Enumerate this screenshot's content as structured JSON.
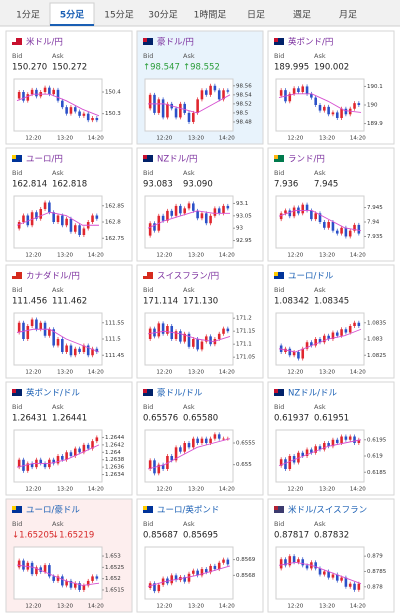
{
  "tabs": [
    "1分足",
    "5分足",
    "15分足",
    "30分足",
    "1時間足",
    "日足",
    "週足",
    "月足"
  ],
  "active_tab": 1,
  "bid_label": "Bid",
  "ask_label": "Ask",
  "xtick_labels": [
    "12:20",
    "13:20",
    "14:20"
  ],
  "up_color": "#e0262e",
  "down_color": "#2b50c8",
  "ma_color": "#d64fd0",
  "panels": [
    {
      "name": "米ドル/円",
      "name_color": "#7b2f9e",
      "background": "#ffffff",
      "quote_color": "#222222",
      "bid": "150.270",
      "ask": "150.272",
      "chart": {
        "ylim": [
          150.22,
          150.46
        ],
        "yticks": [
          150.4,
          150.3
        ],
        "values": [
          150.37,
          150.4,
          150.36,
          150.39,
          150.41,
          150.38,
          150.4,
          150.42,
          150.39,
          150.41,
          150.36,
          150.33,
          150.3,
          150.33,
          150.31,
          150.29,
          150.3,
          150.27,
          150.28,
          150.27
        ],
        "ma": [
          150.36,
          150.39,
          150.39,
          150.36,
          150.32,
          150.29
        ]
      }
    },
    {
      "name": "豪ドル/円",
      "name_color": "#7b2f9e",
      "background": "#e8f3fc",
      "quote_color": "#2a9d3a",
      "bid": "↑98.547",
      "ask": "↑98.552",
      "chart": {
        "ylim": [
          98.46,
          98.575
        ],
        "yticks": [
          98.56,
          98.54,
          98.52,
          98.5,
          98.48
        ],
        "values": [
          98.51,
          98.54,
          98.5,
          98.53,
          98.49,
          98.52,
          98.51,
          98.49,
          98.52,
          98.5,
          98.48,
          98.5,
          98.53,
          98.55,
          98.54,
          98.56,
          98.55,
          98.53,
          98.55,
          98.547
        ],
        "ma": [
          98.52,
          98.52,
          98.51,
          98.5,
          98.52,
          98.54
        ]
      }
    },
    {
      "name": "英ポンド/円",
      "name_color": "#7b2f9e",
      "background": "#ffffff",
      "quote_color": "#222222",
      "bid": "189.995",
      "ask": "190.002",
      "chart": {
        "ylim": [
          189.86,
          190.14
        ],
        "yticks": [
          190.1,
          190,
          189.9
        ],
        "values": [
          190.05,
          190.08,
          190.02,
          190.06,
          190.09,
          190.07,
          190.1,
          190.06,
          190.04,
          190,
          189.97,
          189.99,
          189.95,
          189.96,
          189.93,
          189.98,
          189.95,
          189.98,
          190.01,
          190
        ],
        "ma": [
          190.04,
          190.06,
          190.06,
          190.02,
          189.97,
          189.96
        ]
      }
    },
    {
      "name": "ユーロ/円",
      "name_color": "#7b2f9e",
      "background": "#ffffff",
      "quote_color": "#222222",
      "bid": "162.814",
      "ask": "162.818",
      "chart": {
        "ylim": [
          162.72,
          162.88
        ],
        "yticks": [
          162.85,
          162.8,
          162.75
        ],
        "values": [
          162.78,
          162.8,
          162.82,
          162.79,
          162.83,
          162.81,
          162.84,
          162.86,
          162.83,
          162.8,
          162.82,
          162.79,
          162.81,
          162.77,
          162.79,
          162.76,
          162.78,
          162.8,
          162.82,
          162.81
        ],
        "ma": [
          162.79,
          162.81,
          162.83,
          162.82,
          162.79,
          162.79
        ]
      }
    },
    {
      "name": "NZドル/円",
      "name_color": "#7b2f9e",
      "background": "#ffffff",
      "quote_color": "#222222",
      "bid": "93.083",
      "ask": "93.090",
      "chart": {
        "ylim": [
          92.92,
          93.13
        ],
        "yticks": [
          93.1,
          93.05,
          93,
          92.95
        ],
        "values": [
          92.97,
          93.02,
          92.99,
          93.05,
          93.03,
          93.07,
          93.05,
          93.09,
          93.06,
          93.08,
          93.1,
          93.07,
          93.04,
          93.06,
          93.02,
          93.05,
          93.08,
          93.06,
          93.09,
          93.08
        ],
        "ma": [
          93,
          93.03,
          93.05,
          93.07,
          93.06,
          93.06
        ]
      }
    },
    {
      "name": "ランド/円",
      "name_color": "#7b2f9e",
      "background": "#ffffff",
      "quote_color": "#222222",
      "bid": "7.936",
      "ask": "7.945",
      "chart": {
        "ylim": [
          7.931,
          7.949
        ],
        "yticks": [
          7.945,
          7.94,
          7.935
        ],
        "values": [
          7.941,
          7.943,
          7.944,
          7.942,
          7.945,
          7.943,
          7.946,
          7.944,
          7.941,
          7.943,
          7.94,
          7.938,
          7.94,
          7.937,
          7.936,
          7.938,
          7.935,
          7.937,
          7.939,
          7.936
        ],
        "ma": [
          7.942,
          7.944,
          7.944,
          7.941,
          7.938,
          7.937
        ]
      }
    },
    {
      "name": "カナダドル/円",
      "name_color": "#7b2f9e",
      "background": "#ffffff",
      "quote_color": "#222222",
      "bid": "111.456",
      "ask": "111.462",
      "chart": {
        "ylim": [
          111.42,
          111.58
        ],
        "yticks": [
          111.55,
          111.5,
          111.45
        ],
        "values": [
          111.52,
          111.55,
          111.5,
          111.54,
          111.56,
          111.53,
          111.55,
          111.51,
          111.53,
          111.48,
          111.5,
          111.46,
          111.48,
          111.45,
          111.47,
          111.46,
          111.48,
          111.45,
          111.47,
          111.46
        ],
        "ma": [
          111.52,
          111.53,
          111.53,
          111.5,
          111.48,
          111.46
        ]
      }
    },
    {
      "name": "スイスフラン/円",
      "name_color": "#7b2f9e",
      "background": "#ffffff",
      "quote_color": "#222222",
      "bid": "171.114",
      "ask": "171.130",
      "chart": {
        "ylim": [
          171.02,
          171.22
        ],
        "yticks": [
          171.2,
          171.15,
          171.1,
          171.05
        ],
        "values": [
          171.12,
          171.16,
          171.13,
          171.18,
          171.14,
          171.17,
          171.12,
          171.15,
          171.11,
          171.14,
          171.09,
          171.12,
          171.08,
          171.11,
          171.13,
          171.1,
          171.12,
          171.14,
          171.16,
          171.15
        ],
        "ma": [
          171.14,
          171.15,
          171.14,
          171.12,
          171.11,
          171.13
        ]
      }
    },
    {
      "name": "ユーロ/ドル",
      "name_color": "#1a5fb4",
      "background": "#ffffff",
      "quote_color": "#222222",
      "bid": "1.08342",
      "ask": "1.08345",
      "chart": {
        "ylim": [
          1.0822,
          1.0838
        ],
        "yticks": [
          1.0835,
          1.083,
          1.0825
        ],
        "values": [
          1.0828,
          1.0826,
          1.0827,
          1.0825,
          1.0826,
          1.0824,
          1.0827,
          1.0829,
          1.0828,
          1.083,
          1.0829,
          1.0831,
          1.083,
          1.0832,
          1.0831,
          1.0833,
          1.0832,
          1.0834,
          1.0835,
          1.0834
        ],
        "ma": [
          1.0827,
          1.0826,
          1.0828,
          1.083,
          1.0831,
          1.0833
        ]
      }
    },
    {
      "name": "英ポンド/ドル",
      "name_color": "#1a5fb4",
      "background": "#ffffff",
      "quote_color": "#222222",
      "bid": "1.26431",
      "ask": "1.26441",
      "chart": {
        "ylim": [
          1.2632,
          1.2646
        ],
        "yticks": [
          1.2644,
          1.2642,
          1.264,
          1.2638,
          1.2636,
          1.2634
        ],
        "values": [
          1.2636,
          1.2638,
          1.2635,
          1.2637,
          1.2636,
          1.2638,
          1.2637,
          1.2636,
          1.2638,
          1.2637,
          1.2639,
          1.2638,
          1.264,
          1.2639,
          1.2641,
          1.264,
          1.2642,
          1.2641,
          1.2643,
          1.2644
        ],
        "ma": [
          1.2636,
          1.2637,
          1.2637,
          1.2638,
          1.264,
          1.2642
        ]
      }
    },
    {
      "name": "豪ドル/ドル",
      "name_color": "#1a5fb4",
      "background": "#ffffff",
      "quote_color": "#222222",
      "bid": "0.65576",
      "ask": "0.65580",
      "chart": {
        "ylim": [
          0.6546,
          0.6558
        ],
        "yticks": [
          0.6555,
          0.655
        ],
        "values": [
          0.6549,
          0.6551,
          0.6548,
          0.655,
          0.6549,
          0.6552,
          0.6551,
          0.6554,
          0.6553,
          0.6555,
          0.6554,
          0.6556,
          0.6555,
          0.6556,
          0.6555,
          0.6556,
          0.6557,
          0.6556,
          0.6556,
          0.6556
        ],
        "ma": [
          0.6549,
          0.655,
          0.6552,
          0.6554,
          0.6555,
          0.6556
        ]
      }
    },
    {
      "name": "NZドル/ドル",
      "name_color": "#1a5fb4",
      "background": "#ffffff",
      "quote_color": "#222222",
      "bid": "0.61937",
      "ask": "0.61951",
      "chart": {
        "ylim": [
          0.6182,
          0.6198
        ],
        "yticks": [
          0.6195,
          0.619,
          0.6185
        ],
        "values": [
          0.6187,
          0.6189,
          0.6186,
          0.619,
          0.6188,
          0.6191,
          0.619,
          0.6192,
          0.6191,
          0.6193,
          0.6192,
          0.6194,
          0.6193,
          0.6195,
          0.6194,
          0.6196,
          0.6195,
          0.6196,
          0.6194,
          0.6195
        ],
        "ma": [
          0.6187,
          0.6189,
          0.6191,
          0.6193,
          0.6194,
          0.6195
        ]
      }
    },
    {
      "name": "ユーロ/豪ドル",
      "name_color": "#1a5fb4",
      "background": "#fdeeee",
      "quote_color": "#d62828",
      "bid": "↓1.65205",
      "ask": "↓1.65219",
      "chart": {
        "ylim": [
          1.6511,
          1.6534
        ],
        "yticks": [
          1.653,
          1.6525,
          1.652,
          1.6515
        ],
        "values": [
          1.6525,
          1.6528,
          1.6524,
          1.6527,
          1.6522,
          1.6525,
          1.6523,
          1.6526,
          1.6521,
          1.6519,
          1.6521,
          1.6517,
          1.6519,
          1.6516,
          1.6518,
          1.6515,
          1.6517,
          1.6519,
          1.6521,
          1.652
        ],
        "ma": [
          1.6526,
          1.6525,
          1.6522,
          1.6519,
          1.6517,
          1.6518
        ]
      }
    },
    {
      "name": "ユーロ/英ポンド",
      "name_color": "#1a5fb4",
      "background": "#ffffff",
      "quote_color": "#222222",
      "bid": "0.85687",
      "ask": "0.85695",
      "chart": {
        "ylim": [
          0.85665,
          0.85698
        ],
        "yticks": [
          0.8569,
          0.8568
        ],
        "values": [
          0.85672,
          0.85675,
          0.8567,
          0.85674,
          0.85678,
          0.85675,
          0.8568,
          0.85677,
          0.85679,
          0.85676,
          0.85681,
          0.85683,
          0.8568,
          0.85684,
          0.85682,
          0.85686,
          0.85684,
          0.85688,
          0.8569,
          0.85687
        ],
        "ma": [
          0.85673,
          0.85676,
          0.85678,
          0.8568,
          0.85683,
          0.85686
        ]
      }
    },
    {
      "name": "米ドル/スイスフラン",
      "name_color": "#1a5fb4",
      "background": "#ffffff",
      "quote_color": "#222222",
      "bid": "0.87817",
      "ask": "0.87832",
      "chart": {
        "ylim": [
          0.8776,
          0.8793
        ],
        "yticks": [
          0.879,
          0.8785,
          0.878
        ],
        "values": [
          0.8786,
          0.8789,
          0.8787,
          0.879,
          0.8788,
          0.8789,
          0.8787,
          0.8786,
          0.8788,
          0.8786,
          0.8784,
          0.8785,
          0.8783,
          0.8784,
          0.8782,
          0.8783,
          0.878,
          0.8781,
          0.8779,
          0.8781
        ],
        "ma": [
          0.8787,
          0.8788,
          0.8787,
          0.8785,
          0.8783,
          0.8781
        ]
      }
    }
  ]
}
